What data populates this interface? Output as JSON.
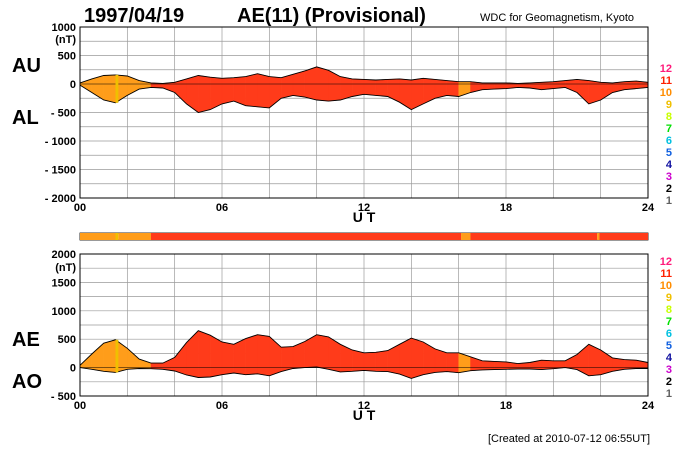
{
  "header": {
    "date": "1997/04/19",
    "title": "AE(11) (Provisional)",
    "source": "WDC for Geomagnetism, Kyoto"
  },
  "footer": {
    "created": "[Created at 2010-07-12 06:55UT]"
  },
  "colors": {
    "station_scale": [
      "#c0c0c0",
      "#606060",
      "#000000",
      "#cc00cc",
      "#1010a0",
      "#1060e0",
      "#00c0e0",
      "#00e000",
      "#c8ff00",
      "#f0c000",
      "#ff8c00",
      "#ff2000",
      "#ff1a7a"
    ],
    "fill_10": "#ff9d1a",
    "fill_11": "#ff3b1a",
    "grid": "#9a9a9a"
  },
  "station_scale_labels": [
    "12",
    "11",
    "10",
    "9",
    "8",
    "7",
    "6",
    "5",
    "4",
    "3",
    "2",
    "1"
  ],
  "chart_data": [
    {
      "type": "area",
      "panel": "AU/AL",
      "series_labels": [
        "AU",
        "AL"
      ],
      "xlabel": "U T",
      "ylabel_unit": "(nT)",
      "x_ticks": [
        "00",
        "06",
        "12",
        "18",
        "24"
      ],
      "xlim": [
        0,
        24
      ],
      "ylim": [
        -2000,
        1000
      ],
      "y_ticks": [
        "1000",
        "500",
        "0",
        "- 500",
        "- 1000",
        "- 1500",
        "- 2000"
      ],
      "grid": true,
      "x_hours": [
        0,
        0.5,
        1,
        1.5,
        2,
        2.5,
        3,
        3.5,
        4,
        4.5,
        5,
        5.5,
        6,
        6.5,
        7,
        7.5,
        8,
        8.5,
        9,
        9.5,
        10,
        10.5,
        11,
        11.5,
        12,
        12.5,
        13,
        13.5,
        14,
        14.5,
        15,
        15.5,
        16,
        16.5,
        17,
        17.5,
        18,
        18.5,
        19,
        19.5,
        20,
        20.5,
        21,
        21.5,
        22,
        22.5,
        23,
        23.5,
        24
      ],
      "AU": [
        20,
        90,
        150,
        160,
        140,
        60,
        20,
        10,
        30,
        90,
        150,
        120,
        100,
        110,
        130,
        180,
        130,
        110,
        170,
        230,
        300,
        240,
        130,
        90,
        80,
        70,
        80,
        90,
        70,
        100,
        80,
        60,
        40,
        40,
        20,
        20,
        20,
        10,
        20,
        30,
        40,
        60,
        80,
        60,
        30,
        20,
        40,
        50,
        30
      ],
      "AL": [
        -20,
        -150,
        -280,
        -330,
        -200,
        -90,
        -60,
        -70,
        -150,
        -350,
        -500,
        -450,
        -350,
        -300,
        -380,
        -400,
        -420,
        -250,
        -200,
        -230,
        -280,
        -300,
        -280,
        -220,
        -180,
        -200,
        -220,
        -320,
        -450,
        -350,
        -250,
        -200,
        -220,
        -150,
        -100,
        -90,
        -80,
        -60,
        -70,
        -100,
        -80,
        -60,
        -150,
        -350,
        -280,
        -150,
        -100,
        -80,
        -60
      ]
    },
    {
      "type": "area",
      "panel": "AE/AO",
      "series_labels": [
        "AE",
        "AO"
      ],
      "xlabel": "U T",
      "ylabel_unit": "(nT)",
      "x_ticks": [
        "00",
        "06",
        "12",
        "18",
        "24"
      ],
      "xlim": [
        0,
        24
      ],
      "ylim": [
        -500,
        2000
      ],
      "y_ticks": [
        "2000",
        "1500",
        "1000",
        "500",
        "0",
        "- 500"
      ],
      "grid": true,
      "x_hours": [
        0,
        0.5,
        1,
        1.5,
        2,
        2.5,
        3,
        3.5,
        4,
        4.5,
        5,
        5.5,
        6,
        6.5,
        7,
        7.5,
        8,
        8.5,
        9,
        9.5,
        10,
        10.5,
        11,
        11.5,
        12,
        12.5,
        13,
        13.5,
        14,
        14.5,
        15,
        15.5,
        16,
        16.5,
        17,
        17.5,
        18,
        18.5,
        19,
        19.5,
        20,
        20.5,
        21,
        21.5,
        22,
        22.5,
        23,
        23.5,
        24
      ],
      "AE": [
        40,
        240,
        430,
        490,
        340,
        150,
        80,
        80,
        180,
        440,
        650,
        570,
        450,
        410,
        510,
        580,
        550,
        360,
        370,
        460,
        580,
        540,
        410,
        310,
        260,
        270,
        300,
        410,
        520,
        450,
        330,
        260,
        260,
        190,
        120,
        110,
        100,
        70,
        90,
        130,
        120,
        120,
        230,
        410,
        310,
        170,
        140,
        130,
        90
      ],
      "AO": [
        0,
        -30,
        -65,
        -85,
        -30,
        -15,
        -20,
        -30,
        -60,
        -130,
        -175,
        -165,
        -125,
        -95,
        -125,
        -110,
        -145,
        -70,
        -15,
        0,
        10,
        -30,
        -75,
        -65,
        -50,
        -65,
        -70,
        -115,
        -190,
        -125,
        -85,
        -70,
        -90,
        -55,
        -40,
        -35,
        -30,
        -25,
        -25,
        -35,
        -20,
        0,
        -35,
        -145,
        -125,
        -65,
        -30,
        -15,
        -15
      ]
    }
  ],
  "activity_bar": {
    "segments": [
      {
        "start_hour": 0,
        "end_hour": 1.5,
        "stations": 10
      },
      {
        "start_hour": 1.5,
        "end_hour": 1.62,
        "stations": 9
      },
      {
        "start_hour": 1.62,
        "end_hour": 3,
        "stations": 10
      },
      {
        "start_hour": 3,
        "end_hour": 16.1,
        "stations": 11
      },
      {
        "start_hour": 16.1,
        "end_hour": 16.5,
        "stations": 10
      },
      {
        "start_hour": 16.5,
        "end_hour": 21.85,
        "stations": 11
      },
      {
        "start_hour": 21.85,
        "end_hour": 21.95,
        "stations": 10
      },
      {
        "start_hour": 21.95,
        "end_hour": 24,
        "stations": 11
      }
    ]
  }
}
